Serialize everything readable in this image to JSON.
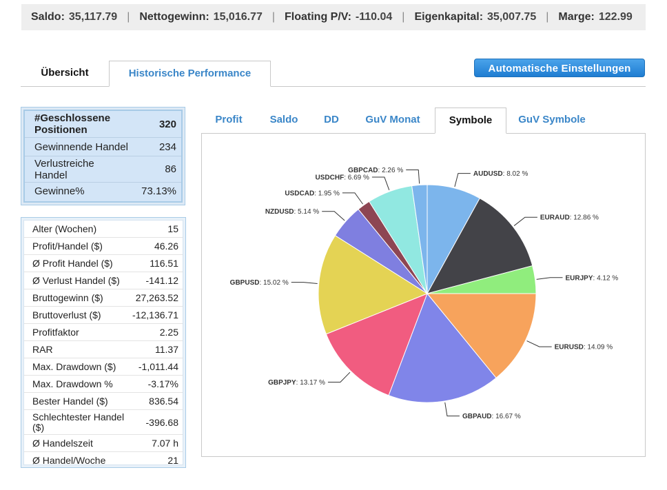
{
  "account": {
    "balance_label": "Saldo:",
    "balance_value": "35,117.79",
    "net_profit_label": "Nettogewinn:",
    "net_profit_value": "15,016.77",
    "floating_label": "Floating P/V:",
    "floating_value": "-110.04",
    "equity_label": "Eigenkapital:",
    "equity_value": "35,007.75",
    "margin_label": "Marge:",
    "margin_value": "122.99",
    "separator": "|"
  },
  "main_tabs": {
    "overview": "Übersicht",
    "historical": "Historische Performance"
  },
  "auto_settings_button": "Automatische Einstellungen",
  "summary": [
    {
      "label": "#Geschlossene Positionen",
      "value": "320"
    },
    {
      "label": "Gewinnende Handel",
      "value": "234"
    },
    {
      "label": "Verlustreiche Handel",
      "value": "86"
    },
    {
      "label": "Gewinne%",
      "value": "73.13%"
    }
  ],
  "stats": [
    {
      "label": "Alter (Wochen)",
      "value": "15"
    },
    {
      "label": "Profit/Handel ($)",
      "value": "46.26"
    },
    {
      "label": "Ø Profit Handel ($)",
      "value": "116.51"
    },
    {
      "label": "Ø Verlust Handel ($)",
      "value": "-141.12"
    },
    {
      "label": "Bruttogewinn ($)",
      "value": "27,263.52"
    },
    {
      "label": "Bruttoverlust ($)",
      "value": "-12,136.71"
    },
    {
      "label": "Profitfaktor",
      "value": "2.25"
    },
    {
      "label": "RAR",
      "value": "11.37"
    },
    {
      "label": "Max. Drawdown ($)",
      "value": "-1,011.44"
    },
    {
      "label": "Max. Drawdown %",
      "value": "-3.17%"
    },
    {
      "label": "Bester Handel ($)",
      "value": "836.54"
    },
    {
      "label": "Schlechtester Handel ($)",
      "value": "-396.68"
    },
    {
      "label": "Ø Handelszeit",
      "value": "7.07 h"
    },
    {
      "label": "Ø Handel/Woche",
      "value": "21"
    }
  ],
  "chart_tabs": [
    "Profit",
    "Saldo",
    "DD",
    "GuV Monat",
    "Symbole",
    "GuV Symbole"
  ],
  "active_chart_tab": "Symbole",
  "chart_data": {
    "type": "pie",
    "title": "",
    "slices": [
      {
        "label": "AUDUSD",
        "value": 8.02,
        "display": "8.02 %",
        "color": "#7cb5ec"
      },
      {
        "label": "EURAUD",
        "value": 12.86,
        "display": "12.86 %",
        "color": "#434348"
      },
      {
        "label": "EURJPY",
        "value": 4.12,
        "display": "4.12 %",
        "color": "#90ed7d"
      },
      {
        "label": "EURUSD",
        "value": 14.09,
        "display": "14.09 %",
        "color": "#f7a35c"
      },
      {
        "label": "GBPAUD",
        "value": 16.67,
        "display": "16.67 %",
        "color": "#8085e9"
      },
      {
        "label": "GBPJPY",
        "value": 13.17,
        "display": "13.17 %",
        "color": "#f15c80"
      },
      {
        "label": "GBPUSD",
        "value": 15.02,
        "display": "15.02 %",
        "color": "#e4d354"
      },
      {
        "label": "NZDUSD",
        "value": 5.14,
        "display": "5.14 %",
        "color": "#7f7fe0"
      },
      {
        "label": "USDCAD",
        "value": 1.95,
        "display": "1.95 %",
        "color": "#8d4653"
      },
      {
        "label": "USDCHF",
        "value": 6.69,
        "display": "6.69 %",
        "color": "#91e8e1"
      },
      {
        "label": "GBPCAD",
        "value": 2.26,
        "display": "2.26 %",
        "color": "#7cb5ec"
      }
    ]
  }
}
